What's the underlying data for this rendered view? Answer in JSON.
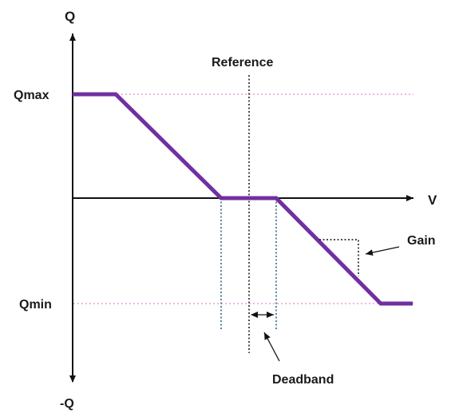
{
  "labels": {
    "q_axis": "Q",
    "neg_q_axis": "-Q",
    "v_axis": "V",
    "qmax": "Qmax",
    "qmin": "Qmin",
    "reference": "Reference",
    "gain": "Gain",
    "deadband": "Deadband"
  },
  "colors": {
    "curve": "#7030a0",
    "axis": "#111111",
    "limit_line": "#e9a0d8",
    "deadband_line": "#1f5f7a",
    "reference_line": "#111111"
  }
}
